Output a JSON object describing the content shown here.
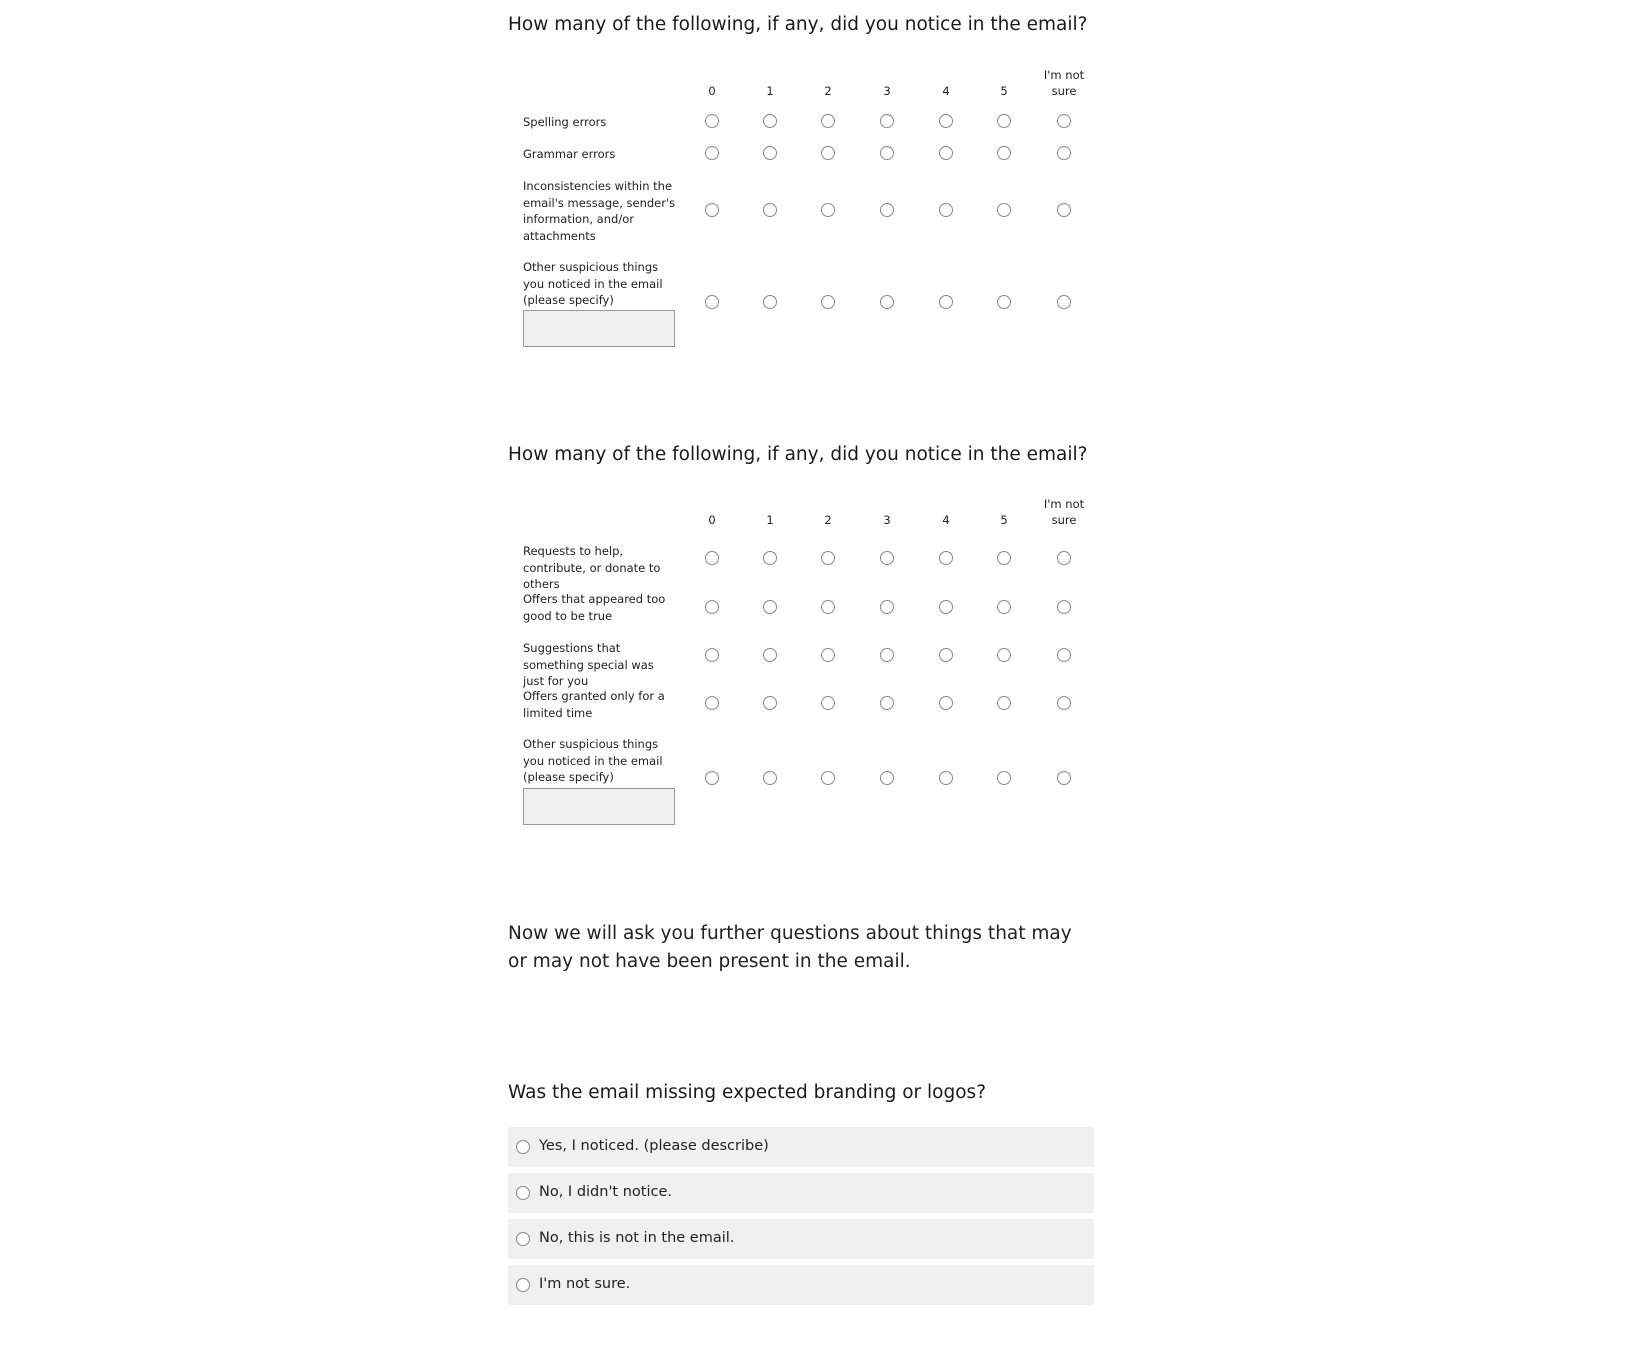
{
  "matrix1": {
    "title": "How many of the following, if any, did you notice in the email?",
    "columns": [
      "0",
      "1",
      "2",
      "3",
      "4",
      "5",
      "I'm not sure"
    ],
    "rows": [
      {
        "label": "Spelling errors"
      },
      {
        "label": "Grammar errors"
      },
      {
        "label": "Inconsistencies within the email's message, sender's information, and/or attachments"
      },
      {
        "label": "Other suspicious things you noticed in the email (please specify)",
        "text_input_value": ""
      }
    ]
  },
  "matrix2": {
    "title": "How many of the following, if any, did you notice in the email?",
    "columns": [
      "0",
      "1",
      "2",
      "3",
      "4",
      "5",
      "I'm not sure"
    ],
    "rows": [
      {
        "label": "Requests to help, contribute, or donate to others"
      },
      {
        "label": "Offers that appeared too good to be true"
      },
      {
        "label": "Suggestions that something special was just for you"
      },
      {
        "label": "Offers granted only for a limited time"
      },
      {
        "label": "Other suspicious things you noticed in the email (please specify)",
        "text_input_value": ""
      }
    ]
  },
  "intro": {
    "text": "Now we will ask you further questions about things that may or may not have been present in the email."
  },
  "question3": {
    "title": "Was the email missing expected branding or logos?",
    "options": [
      {
        "label": "Yes, I noticed. (please describe)"
      },
      {
        "label": "No, I didn't notice."
      },
      {
        "label": "No, this is not in the email."
      },
      {
        "label": "I'm not sure."
      }
    ]
  }
}
